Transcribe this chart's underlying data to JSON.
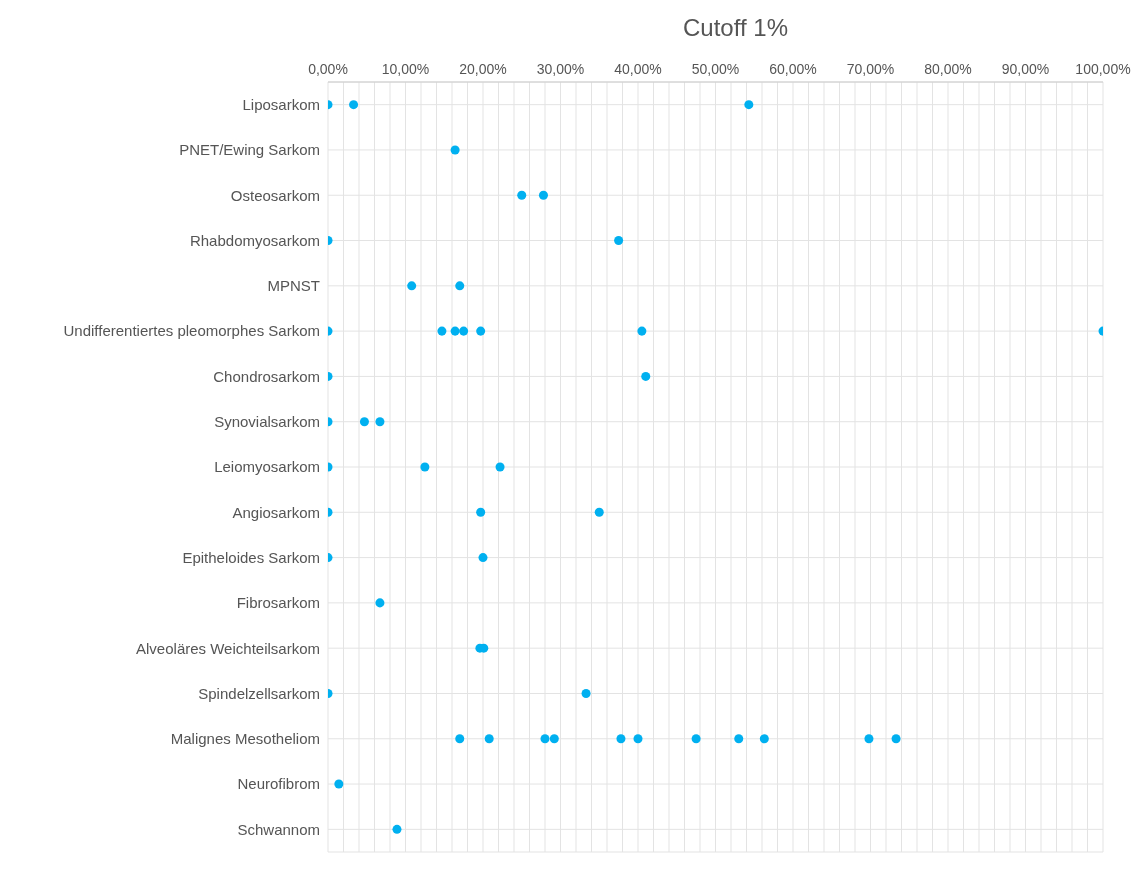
{
  "chart_data": {
    "type": "scatter",
    "title": "Cutoff 1%",
    "orientation": "horizontal",
    "categories": [
      "Liposarkom",
      "PNET/Ewing Sarkom",
      "Osteosarkom",
      "Rhabdomyosarkom",
      "MPNST",
      "Undifferentiertes pleomorphes Sarkom",
      "Chondrosarkom",
      "Synovialsarkom",
      "Leiomyosarkom",
      "Angiosarkom",
      "Epitheloides Sarkom",
      "Fibrosarkom",
      "Alveoläres Weichteilsarkom",
      "Spindelzellsarkom",
      "Malignes Mesotheliom",
      "Neurofibrom",
      "Schwannom"
    ],
    "series": [
      {
        "color": "#00b0f0",
        "x": [
          "Liposarkom",
          "Liposarkom",
          "Liposarkom",
          "PNET/Ewing Sarkom",
          "Osteosarkom",
          "Osteosarkom",
          "Rhabdomyosarkom",
          "Rhabdomyosarkom",
          "MPNST",
          "MPNST",
          "Undifferentiertes pleomorphes Sarkom",
          "Undifferentiertes pleomorphes Sarkom",
          "Undifferentiertes pleomorphes Sarkom",
          "Undifferentiertes pleomorphes Sarkom",
          "Undifferentiertes pleomorphes Sarkom",
          "Undifferentiertes pleomorphes Sarkom",
          "Undifferentiertes pleomorphes Sarkom",
          "Chondrosarkom",
          "Chondrosarkom",
          "Synovialsarkom",
          "Synovialsarkom",
          "Synovialsarkom",
          "Leiomyosarkom",
          "Leiomyosarkom",
          "Leiomyosarkom",
          "Angiosarkom",
          "Angiosarkom",
          "Angiosarkom",
          "Epitheloides Sarkom",
          "Epitheloides Sarkom",
          "Fibrosarkom",
          "Alveoläres Weichteilsarkom",
          "Alveoläres Weichteilsarkom",
          "Spindelzellsarkom",
          "Spindelzellsarkom",
          "Malignes Mesotheliom",
          "Malignes Mesotheliom",
          "Malignes Mesotheliom",
          "Malignes Mesotheliom",
          "Malignes Mesotheliom",
          "Malignes Mesotheliom",
          "Malignes Mesotheliom",
          "Malignes Mesotheliom",
          "Malignes Mesotheliom",
          "Malignes Mesotheliom",
          "Malignes Mesotheliom",
          "Neurofibrom",
          "Schwannom"
        ],
        "values": [
          0,
          3.3,
          54.3,
          16.4,
          25,
          27.8,
          0,
          37.5,
          10.8,
          17,
          0,
          14.7,
          16.4,
          17.5,
          19.7,
          40.5,
          100,
          0,
          41,
          0,
          4.7,
          6.7,
          0,
          12.5,
          22.2,
          0,
          19.7,
          35,
          0,
          20,
          6.7,
          19.6,
          20.1,
          0,
          33.3,
          17,
          20.8,
          28,
          29.2,
          37.8,
          40,
          47.5,
          53,
          56.3,
          69.8,
          73.3,
          1.4,
          8.9
        ]
      }
    ],
    "xlim": [
      0,
      100
    ],
    "xticks": [
      {
        "value": 0,
        "label": "0,00%"
      },
      {
        "value": 2,
        "label": null
      },
      {
        "value": 4,
        "label": null
      },
      {
        "value": 6,
        "label": null
      },
      {
        "value": 8,
        "label": null
      },
      {
        "value": 10,
        "label": "10,00%"
      },
      {
        "value": 12,
        "label": null
      },
      {
        "value": 14,
        "label": null
      },
      {
        "value": 16,
        "label": null
      },
      {
        "value": 18,
        "label": null
      },
      {
        "value": 20,
        "label": "20,00%"
      },
      {
        "value": 22,
        "label": null
      },
      {
        "value": 24,
        "label": null
      },
      {
        "value": 26,
        "label": null
      },
      {
        "value": 28,
        "label": null
      },
      {
        "value": 30,
        "label": "30,00%"
      },
      {
        "value": 32,
        "label": null
      },
      {
        "value": 34,
        "label": null
      },
      {
        "value": 36,
        "label": null
      },
      {
        "value": 38,
        "label": null
      },
      {
        "value": 40,
        "label": "40,00%"
      },
      {
        "value": 42,
        "label": null
      },
      {
        "value": 44,
        "label": null
      },
      {
        "value": 46,
        "label": null
      },
      {
        "value": 48,
        "label": null
      },
      {
        "value": 50,
        "label": "50,00%"
      },
      {
        "value": 52,
        "label": null
      },
      {
        "value": 54,
        "label": null
      },
      {
        "value": 56,
        "label": null
      },
      {
        "value": 58,
        "label": null
      },
      {
        "value": 60,
        "label": "60,00%"
      },
      {
        "value": 62,
        "label": null
      },
      {
        "value": 64,
        "label": null
      },
      {
        "value": 66,
        "label": null
      },
      {
        "value": 68,
        "label": null
      },
      {
        "value": 70,
        "label": "70,00%"
      },
      {
        "value": 72,
        "label": null
      },
      {
        "value": 74,
        "label": null
      },
      {
        "value": 76,
        "label": null
      },
      {
        "value": 78,
        "label": null
      },
      {
        "value": 80,
        "label": "80,00%"
      },
      {
        "value": 82,
        "label": null
      },
      {
        "value": 84,
        "label": null
      },
      {
        "value": 86,
        "label": null
      },
      {
        "value": 88,
        "label": null
      },
      {
        "value": 90,
        "label": "90,00%"
      },
      {
        "value": 92,
        "label": null
      },
      {
        "value": 94,
        "label": null
      },
      {
        "value": 96,
        "label": null
      },
      {
        "value": 98,
        "label": null
      },
      {
        "value": 100,
        "label": "100,00%"
      }
    ],
    "grid": true,
    "marker": "circle"
  }
}
